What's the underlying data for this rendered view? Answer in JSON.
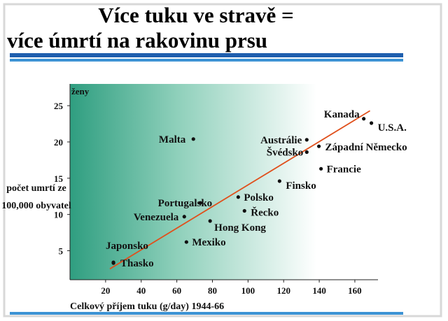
{
  "chart_data": {
    "type": "scatter",
    "title": "Více tuku ve stravě =",
    "subtitle": "více úmrtí na rakovinu prsu",
    "y_group_label": "ženy",
    "y_label_lines": [
      "počet umrtí ze",
      "100,000 obyvatel"
    ],
    "x_label": "Celkový příjem tuku (g/day) 1944-66",
    "xlim": [
      0,
      173
    ],
    "ylim": [
      1,
      28
    ],
    "xticks": [
      20,
      40,
      60,
      80,
      100,
      120,
      140,
      160
    ],
    "yticks": [
      5,
      10,
      15,
      20,
      25
    ],
    "point_color": "#111111",
    "points": [
      {
        "name": "Thasko",
        "x": 24.4,
        "y": 3.3
      },
      {
        "name": "Japonsko",
        "x": 24.4,
        "y": 3.4
      },
      {
        "name": "Mexiko",
        "x": 65.4,
        "y": 6.2
      },
      {
        "name": "Hong Kong",
        "x": 78.7,
        "y": 9.1
      },
      {
        "name": "Venezuela",
        "x": 64.2,
        "y": 9.7
      },
      {
        "name": "Portugalsko",
        "x": 73.2,
        "y": 11.6
      },
      {
        "name": "Malta",
        "x": 69.3,
        "y": 20.4
      },
      {
        "name": "Polsko",
        "x": 94.5,
        "y": 12.4
      },
      {
        "name": "Řecko",
        "x": 98,
        "y": 10.5
      },
      {
        "name": "Finsko",
        "x": 117.7,
        "y": 14.6
      },
      {
        "name": "Francie",
        "x": 141,
        "y": 16.3
      },
      {
        "name": "Západní Německo",
        "x": 139.8,
        "y": 19.4
      },
      {
        "name": "Švédsko",
        "x": 133,
        "y": 18.6
      },
      {
        "name": "Austrálie",
        "x": 133,
        "y": 20.3
      },
      {
        "name": "Kanada",
        "x": 165,
        "y": 23.2
      },
      {
        "name": "U.S.A.",
        "x": 169.3,
        "y": 22.6
      }
    ],
    "trendline": {
      "x": [
        22.4,
        168.5
      ],
      "y": [
        2.5,
        24.3
      ],
      "color": "#e0501c"
    }
  }
}
